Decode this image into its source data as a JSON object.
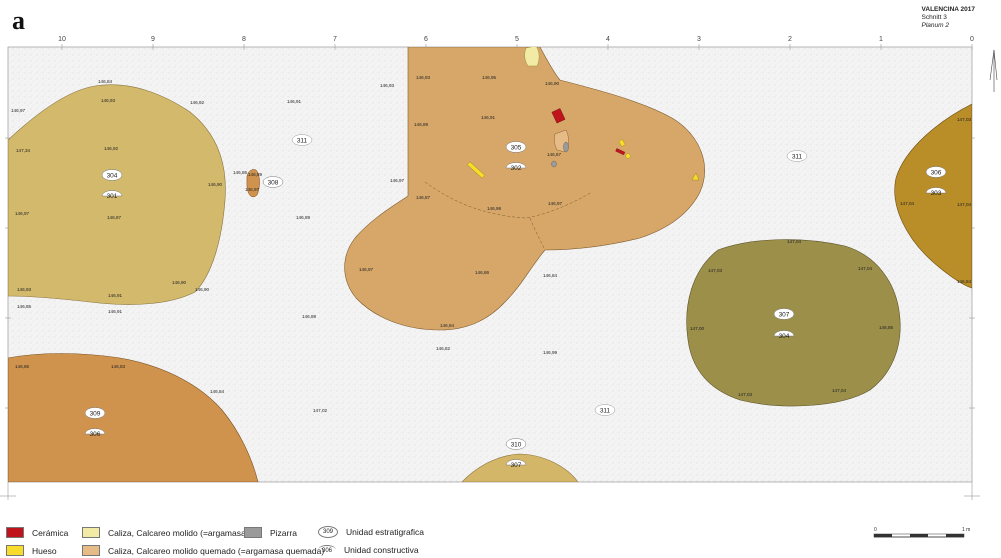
{
  "panel_letter": "a",
  "title": {
    "line1": "VALENCINA 2017",
    "line2": "Schnitt 3",
    "line3": "Planum 2"
  },
  "grid_top_labels": [
    "10",
    "9",
    "8",
    "7",
    "6",
    "5",
    "4",
    "3",
    "2",
    "1",
    "0"
  ],
  "colors": {
    "sediment_311": "#f3f3f3",
    "caliza_304": "#d3b96c",
    "caliza_quemado_305": "#d6a769",
    "unit_309": "#d0934e",
    "unit_307_bottom": "#d3b667",
    "unit_307_right": "#9c8f4a",
    "unit_306": "#b98d28",
    "ceramica": "#c0141c",
    "hueso": "#f7dc2c",
    "caliza_molido": "#f1eba5",
    "caliza_molido_quemado": "#e6bb86",
    "pizarra": "#9a9a9a"
  },
  "features": {
    "f304": {
      "unit": "304",
      "construct": "301"
    },
    "f305": {
      "unit": "305",
      "construct": "302"
    },
    "f309": {
      "unit": "309",
      "construct": "306"
    },
    "f310": {
      "unit": "310",
      "construct": "307"
    },
    "f307": {
      "unit": "307",
      "construct": "304"
    },
    "f306": {
      "unit": "306",
      "construct": "303"
    },
    "f308": {
      "unit": "308"
    },
    "sed_a": {
      "unit": "311"
    },
    "sed_b": {
      "unit": "311"
    },
    "sed_c": {
      "unit": "311"
    }
  },
  "elevations": {
    "e01": "146,84",
    "e02": "146,93",
    "e03": "146,92",
    "e04": "146,97",
    "e05": "146,91",
    "e06": "146,93",
    "e07": "146,93",
    "e08": "146,95",
    "e09": "146,90",
    "e10": "146,92",
    "e11": "147,34",
    "e12": "146,89",
    "e13": "146,91",
    "e14": "146,90",
    "e15": "146,86",
    "e16": "146,97",
    "e17": "146,87",
    "e18": "147,03",
    "e19": "146,97",
    "e20": "146,87",
    "e21": "146,89",
    "e22": "146,87",
    "e23": "146,98",
    "e24": "146,97",
    "e25": "146,97",
    "e26": "146,89",
    "e27": "147,04",
    "e28": "147,04",
    "e29": "146,93",
    "e30": "146,91",
    "e31": "146,90",
    "e32": "146,90",
    "e33": "146,85",
    "e34": "146,91",
    "e35": "146,89",
    "e36": "146,97",
    "e37": "146,86",
    "e38": "146,84",
    "e39": "147,04",
    "e40": "147,03",
    "e41": "147,04",
    "e42": "146,84",
    "e43": "146,84",
    "e44": "146,82",
    "e45": "146,99",
    "e46": "147,00",
    "e47": "146,86",
    "e48": "146,86",
    "e49": "146,83",
    "e50": "146,84",
    "e51": "147,02",
    "e52": "147,03"
  },
  "legend": {
    "ceramica": "Cerámica",
    "hueso": "Hueso",
    "caliza_molido": "Caliza, Calcareo molido (=argamasa)",
    "caliza_quemado": "Caliza, Calcareo molido quemado (=argamasa quemada)",
    "pizarra": "Pizarra",
    "ue_number": "309",
    "ue_label": "Unidad estratigrafica",
    "uc_number": "306",
    "uc_label": "Unidad constructiva"
  },
  "scale": {
    "start": "0",
    "end": "1 m"
  }
}
